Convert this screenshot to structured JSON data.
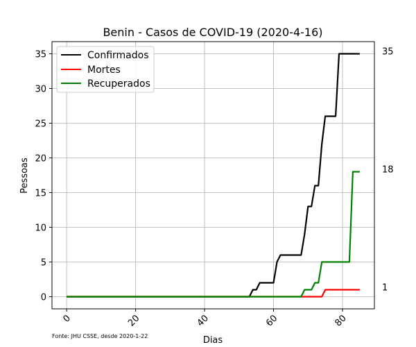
{
  "chart_data": {
    "type": "line",
    "title": "Benin - Casos de COVID-19 (2020-4-16)",
    "xlabel": "Dias",
    "ylabel": "Pessoas",
    "xlim": [
      -4.25,
      89.25
    ],
    "ylim": [
      -1.75,
      36.75
    ],
    "xticks": [
      0,
      20,
      40,
      60,
      80
    ],
    "yticks": [
      0,
      5,
      10,
      15,
      20,
      25,
      30,
      35
    ],
    "grid": true,
    "legend_position": "upper-left",
    "source": "Fonte: JHU CSSE, desde 2020-1-22",
    "end_labels": [
      "35",
      "18",
      "1"
    ],
    "series": [
      {
        "name": "Confirmados",
        "color": "#000000",
        "points": [
          [
            0,
            0
          ],
          [
            53,
            0
          ],
          [
            54,
            1
          ],
          [
            55,
            1
          ],
          [
            56,
            2
          ],
          [
            60,
            2
          ],
          [
            61,
            5
          ],
          [
            62,
            6
          ],
          [
            68,
            6
          ],
          [
            69,
            9
          ],
          [
            70,
            13
          ],
          [
            71,
            13
          ],
          [
            72,
            16
          ],
          [
            73,
            16
          ],
          [
            74,
            22
          ],
          [
            75,
            26
          ],
          [
            78,
            26
          ],
          [
            79,
            35
          ],
          [
            85,
            35
          ]
        ]
      },
      {
        "name": "Mortes",
        "color": "#ff0000",
        "points": [
          [
            0,
            0
          ],
          [
            74,
            0
          ],
          [
            75,
            1
          ],
          [
            85,
            1
          ]
        ]
      },
      {
        "name": "Recuperados",
        "color": "#008000",
        "points": [
          [
            0,
            0
          ],
          [
            68,
            0
          ],
          [
            69,
            1
          ],
          [
            71,
            1
          ],
          [
            72,
            2
          ],
          [
            73,
            2
          ],
          [
            74,
            5
          ],
          [
            82,
            5
          ],
          [
            83,
            18
          ],
          [
            85,
            18
          ]
        ]
      }
    ]
  }
}
